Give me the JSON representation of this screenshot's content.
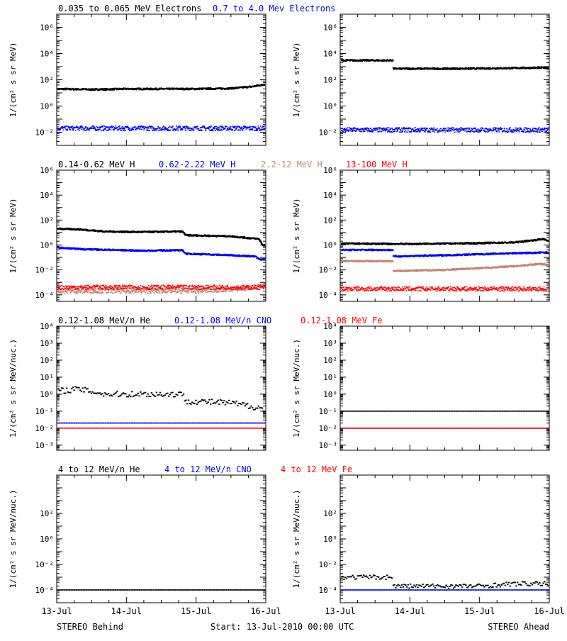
{
  "colors": {
    "black": "#000000",
    "blue": "#0000ff",
    "tan": "#c38670",
    "red": "#ff0000"
  },
  "rows": [
    {
      "legend": [
        {
          "text": "0.035 to 0.065 MeV Electrons",
          "color": "#000000"
        },
        {
          "text": "0.7 to 4.0 Mev Electrons",
          "color": "#0000ff"
        }
      ]
    },
    {
      "legend": [
        {
          "text": "0.14-0.62 MeV H",
          "color": "#000000"
        },
        {
          "text": "0.62-2.22 MeV H",
          "color": "#0000ff"
        },
        {
          "text": "2.2-12 MeV H",
          "color": "#c38670"
        },
        {
          "text": "13-100 MeV H",
          "color": "#ff0000"
        }
      ]
    },
    {
      "legend": [
        {
          "text": "0.12-1.08 MeV/n He",
          "color": "#000000"
        },
        {
          "text": "0.12-1.08 MeV/n CNO",
          "color": "#0000ff"
        },
        {
          "text": "0.12-1.08 MeV Fe",
          "color": "#ff0000"
        }
      ]
    },
    {
      "legend": [
        {
          "text": "4 to 12 MeV/n He",
          "color": "#000000"
        },
        {
          "text": "4 to 12 MeV/n CNO",
          "color": "#0000ff"
        },
        {
          "text": "4 to 12 MeV Fe",
          "color": "#ff0000"
        }
      ]
    }
  ],
  "footer": {
    "left": "STEREO Behind",
    "center": "Start: 13-Jul-2010 00:00 UTC",
    "right": "STEREO Ahead"
  },
  "chart_data": [
    {
      "type": "scatter",
      "spacecraft": "STEREO Behind",
      "ylabel": "1/(cm² s sr MeV)",
      "yscale": "log",
      "ylim": [
        0.001,
        10000000
      ],
      "yticks": [
        "10⁻²",
        "10⁰",
        "10²",
        "10⁴",
        "10⁶"
      ],
      "ytick_values": [
        -2,
        0,
        2,
        4,
        6
      ],
      "xticks": [
        "13-Jul",
        "14-Jul",
        "15-Jul",
        "16-Jul"
      ],
      "xlim_days": [
        0,
        3
      ],
      "series": [
        {
          "name": "0.035 to 0.065 MeV Electrons",
          "color": "#000000",
          "style": "dense",
          "points": [
            [
              0,
              20
            ],
            [
              0.5,
              18
            ],
            [
              1,
              20
            ],
            [
              1.5,
              20
            ],
            [
              2,
              20
            ],
            [
              2.5,
              22
            ],
            [
              2.8,
              30
            ],
            [
              3,
              45
            ]
          ]
        },
        {
          "name": "0.7 to 4.0 Mev Electrons",
          "color": "#0000ff",
          "style": "noisy",
          "points": [
            [
              0,
              0.02
            ],
            [
              1,
              0.02
            ],
            [
              2,
              0.02
            ],
            [
              3,
              0.02
            ]
          ]
        }
      ]
    },
    {
      "type": "scatter",
      "spacecraft": "STEREO Ahead",
      "ylabel": "1/(cm² s sr MeV)",
      "yscale": "log",
      "ylim": [
        0.001,
        10000000
      ],
      "yticks": [
        "10⁻²",
        "10⁰",
        "10²",
        "10⁴",
        "10⁶"
      ],
      "ytick_values": [
        -2,
        0,
        2,
        4,
        6
      ],
      "xticks": [
        "13-Jul",
        "14-Jul",
        "15-Jul",
        "16-Jul"
      ],
      "xlim_days": [
        0,
        3
      ],
      "series": [
        {
          "name": "0.035 to 0.065 MeV Electrons",
          "color": "#000000",
          "style": "dense",
          "points": [
            [
              0,
              3000
            ],
            [
              0.75,
              3000
            ],
            [
              0.76,
              700
            ],
            [
              1.5,
              700
            ],
            [
              2,
              720
            ],
            [
              2.5,
              780
            ],
            [
              3,
              850
            ]
          ]
        },
        {
          "name": "0.7 to 4.0 Mev Electrons",
          "color": "#0000ff",
          "style": "noisy",
          "points": [
            [
              0,
              0.015
            ],
            [
              1,
              0.015
            ],
            [
              2,
              0.015
            ],
            [
              3,
              0.015
            ]
          ]
        }
      ]
    },
    {
      "type": "scatter",
      "spacecraft": "STEREO Behind",
      "ylabel": "1/(cm² s sr MeV)",
      "yscale": "log",
      "ylim": [
        3e-05,
        1000000
      ],
      "yticks": [
        "10⁻⁴",
        "10⁻²",
        "10⁰",
        "10²",
        "10⁴",
        "10⁶"
      ],
      "ytick_values": [
        -4,
        -2,
        0,
        2,
        4,
        6
      ],
      "xticks": [
        "13-Jul",
        "14-Jul",
        "15-Jul",
        "16-Jul"
      ],
      "xlim_days": [
        0,
        3
      ],
      "series": [
        {
          "name": "0.14-0.62 MeV H",
          "color": "#000000",
          "style": "dense",
          "points": [
            [
              0,
              20
            ],
            [
              0.3,
              18
            ],
            [
              0.7,
              12
            ],
            [
              1.2,
              11
            ],
            [
              1.8,
              12
            ],
            [
              1.85,
              6
            ],
            [
              2.5,
              5
            ],
            [
              2.9,
              3
            ],
            [
              2.95,
              1
            ],
            [
              3,
              1
            ]
          ]
        },
        {
          "name": "0.62-2.22 MeV H",
          "color": "#0000ff",
          "style": "dense",
          "points": [
            [
              0,
              0.6
            ],
            [
              0.4,
              0.45
            ],
            [
              1.2,
              0.35
            ],
            [
              1.8,
              0.38
            ],
            [
              1.85,
              0.2
            ],
            [
              2.5,
              0.15
            ],
            [
              2.85,
              0.12
            ],
            [
              2.9,
              0.07
            ],
            [
              3,
              0.07
            ]
          ]
        },
        {
          "name": "2.2-12 MeV H",
          "color": "#c38670",
          "style": "noisy",
          "points": [
            [
              0,
              0.0002
            ],
            [
              1,
              0.0002
            ],
            [
              2,
              0.0002
            ],
            [
              2.7,
              0.0003
            ],
            [
              3,
              0.0006
            ]
          ]
        },
        {
          "name": "13-100 MeV H",
          "color": "#ff0000",
          "style": "noisy",
          "points": [
            [
              0,
              0.0004
            ],
            [
              1,
              0.0004
            ],
            [
              2,
              0.0004
            ],
            [
              3,
              0.0004
            ]
          ]
        }
      ]
    },
    {
      "type": "scatter",
      "spacecraft": "STEREO Ahead",
      "ylabel": "1/(cm² s sr MeV)",
      "yscale": "log",
      "ylim": [
        3e-05,
        1000000
      ],
      "yticks": [
        "10⁻⁴",
        "10⁻²",
        "10⁰",
        "10²",
        "10⁴",
        "10⁶"
      ],
      "ytick_values": [
        -4,
        -2,
        0,
        2,
        4,
        6
      ],
      "xticks": [
        "13-Jul",
        "14-Jul",
        "15-Jul",
        "16-Jul"
      ],
      "xlim_days": [
        0,
        3
      ],
      "series": [
        {
          "name": "0.14-0.62 MeV H",
          "color": "#000000",
          "style": "dense",
          "points": [
            [
              0,
              1.3
            ],
            [
              1,
              1.2
            ],
            [
              2,
              1.4
            ],
            [
              2.5,
              1.6
            ],
            [
              2.8,
              2.5
            ],
            [
              2.9,
              3
            ],
            [
              3,
              2
            ]
          ]
        },
        {
          "name": "0.62-2.22 MeV H",
          "color": "#0000ff",
          "style": "dense",
          "points": [
            [
              0,
              0.4
            ],
            [
              0.75,
              0.4
            ],
            [
              0.76,
              0.12
            ],
            [
              1.5,
              0.15
            ],
            [
              2,
              0.18
            ],
            [
              2.5,
              0.22
            ],
            [
              3,
              0.25
            ]
          ]
        },
        {
          "name": "2.2-12 MeV H",
          "color": "#c38670",
          "style": "dense",
          "points": [
            [
              0,
              0.05
            ],
            [
              0.75,
              0.05
            ],
            [
              0.76,
              0.008
            ],
            [
              1.5,
              0.01
            ],
            [
              2,
              0.014
            ],
            [
              2.5,
              0.02
            ],
            [
              2.85,
              0.03
            ],
            [
              3,
              0.025
            ]
          ]
        },
        {
          "name": "13-100 MeV H",
          "color": "#ff0000",
          "style": "noisy",
          "points": [
            [
              0,
              0.0003
            ],
            [
              1,
              0.0003
            ],
            [
              2,
              0.0003
            ],
            [
              3,
              0.0003
            ]
          ]
        }
      ]
    },
    {
      "type": "scatter",
      "spacecraft": "STEREO Behind",
      "ylabel": "1/(cm² s sr MeV/nuc.)",
      "yscale": "log",
      "ylim": [
        0.0005,
        10000
      ],
      "yticks": [
        "10⁻³",
        "10⁻²",
        "10⁻¹",
        "10⁰",
        "10¹",
        "10²",
        "10³",
        "10⁴"
      ],
      "ytick_values": [
        -3,
        -2,
        -1,
        0,
        1,
        2,
        3,
        4
      ],
      "xticks": [
        "13-Jul",
        "14-Jul",
        "15-Jul",
        "16-Jul"
      ],
      "xlim_days": [
        0,
        3
      ],
      "series": [
        {
          "name": "0.12-1.08 MeV/n He",
          "color": "#000000",
          "style": "sparse",
          "points": [
            [
              0,
              1.5
            ],
            [
              0.3,
              2
            ],
            [
              0.7,
              1
            ],
            [
              1.2,
              1
            ],
            [
              1.8,
              1
            ],
            [
              1.85,
              0.4
            ],
            [
              2.5,
              0.3
            ],
            [
              2.95,
              0.15
            ],
            [
              3,
              0.05
            ]
          ]
        },
        {
          "name": "0.12-1.08 MeV/n CNO",
          "color": "#0000ff",
          "style": "dashed",
          "points": [
            [
              0,
              0.02
            ],
            [
              3,
              0.02
            ]
          ]
        },
        {
          "name": "0.12-1.08 MeV Fe",
          "color": "#ff0000",
          "style": "dashed",
          "points": [
            [
              0,
              0.01
            ],
            [
              3,
              0.01
            ]
          ]
        }
      ]
    },
    {
      "type": "scatter",
      "spacecraft": "STEREO Ahead",
      "ylabel": "1/(cm² s sr MeV/nuc.)",
      "yscale": "log",
      "ylim": [
        0.0005,
        10000
      ],
      "yticks": [
        "10⁻³",
        "10⁻²",
        "10⁻¹",
        "10⁰",
        "10¹",
        "10²",
        "10³",
        "10⁴"
      ],
      "ytick_values": [
        -3,
        -2,
        -1,
        0,
        1,
        2,
        3,
        4
      ],
      "xticks": [
        "13-Jul",
        "14-Jul",
        "15-Jul",
        "16-Jul"
      ],
      "xlim_days": [
        0,
        3
      ],
      "series": [
        {
          "name": "0.12-1.08 MeV/n He",
          "color": "#000000",
          "style": "dashed",
          "points": [
            [
              0,
              0.1
            ],
            [
              0.7,
              0.1
            ],
            [
              3,
              0.1
            ]
          ]
        },
        {
          "name": "0.12-1.08 MeV/n CNO",
          "color": "#0000ff",
          "style": "dashed",
          "points": [
            [
              0,
              0.01
            ],
            [
              3,
              0.01
            ]
          ]
        },
        {
          "name": "0.12-1.08 MeV Fe",
          "color": "#ff0000",
          "style": "dashed",
          "points": [
            [
              0,
              0.01
            ],
            [
              3,
              0.01
            ]
          ]
        }
      ]
    },
    {
      "type": "scatter",
      "spacecraft": "STEREO Behind",
      "ylabel": "1/(cm² s sr MeV/nuc.)",
      "yscale": "log",
      "ylim": [
        1e-05,
        100000
      ],
      "yticks": [
        "10⁻⁴",
        "10⁻²",
        "10⁰",
        "10²"
      ],
      "ytick_values": [
        -4,
        -2,
        0,
        2
      ],
      "xticks": [
        "13-Jul",
        "14-Jul",
        "15-Jul",
        "16-Jul"
      ],
      "xlim_days": [
        0,
        3
      ],
      "series": [
        {
          "name": "4 to 12 MeV/n He",
          "color": "#000000",
          "style": "dashed",
          "points": [
            [
              0,
              0.0001
            ],
            [
              3,
              0.0001
            ]
          ]
        },
        {
          "name": "4 to 12 MeV/n CNO",
          "color": "#0000ff",
          "style": "none",
          "points": []
        },
        {
          "name": "4 to 12 MeV Fe",
          "color": "#ff0000",
          "style": "none",
          "points": []
        }
      ]
    },
    {
      "type": "scatter",
      "spacecraft": "STEREO Ahead",
      "ylabel": "1/(cm² s sr MeV/nuc.)",
      "yscale": "log",
      "ylim": [
        1e-05,
        100000
      ],
      "yticks": [
        "10⁻⁴",
        "10⁻²",
        "10⁰",
        "10²"
      ],
      "ytick_values": [
        -4,
        -2,
        0,
        2
      ],
      "xticks": [
        "13-Jul",
        "14-Jul",
        "15-Jul",
        "16-Jul"
      ],
      "xlim_days": [
        0,
        3
      ],
      "series": [
        {
          "name": "4 to 12 MeV/n He",
          "color": "#000000",
          "style": "sparse",
          "points": [
            [
              0,
              0.001
            ],
            [
              0.75,
              0.001
            ],
            [
              0.76,
              0.0002
            ],
            [
              1.5,
              0.0002
            ],
            [
              2,
              0.0002
            ],
            [
              2.5,
              0.0003
            ],
            [
              3,
              0.0003
            ]
          ]
        },
        {
          "name": "4 to 12 MeV/n CNO",
          "color": "#0000ff",
          "style": "dashed",
          "points": [
            [
              0,
              0.0001
            ],
            [
              3,
              0.0001
            ]
          ]
        },
        {
          "name": "4 to 12 MeV Fe",
          "color": "#ff0000",
          "style": "none",
          "points": []
        }
      ]
    }
  ]
}
